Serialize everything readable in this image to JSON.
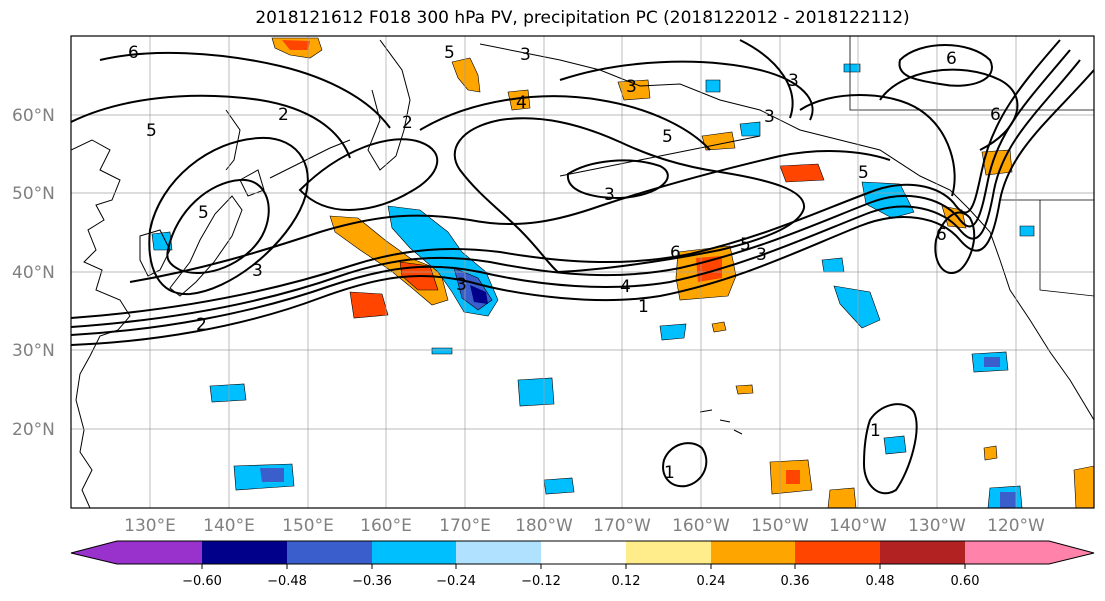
{
  "title": "2018121612 F018 300 hPa PV, precipitation PC (2018122012 - 2018122112)",
  "lat_labels": [
    "60°N",
    "50°N",
    "40°N",
    "30°N",
    "20°N"
  ],
  "lon_labels": [
    "130°E",
    "140°E",
    "150°E",
    "160°E",
    "170°E",
    "180°W",
    "170°W",
    "160°W",
    "150°W",
    "140°W",
    "130°W",
    "120°W"
  ],
  "colorbar": {
    "colors": [
      "#9932cc",
      "#00008b",
      "#3a5fcd",
      "#00bfff",
      "#b0e2ff",
      "#ffffff",
      "#ffec8b",
      "#ffa500",
      "#ff4500",
      "#b22222",
      "#ff82ab"
    ],
    "tick_labels": [
      "−0.60",
      "−0.48",
      "−0.36",
      "−0.24",
      "−0.12",
      "0.12",
      "0.24",
      "0.36",
      "0.48",
      "0.60"
    ]
  },
  "contour_labels": [
    "6",
    "5",
    "2",
    "5",
    "3",
    "4",
    "3",
    "5",
    "3",
    "3",
    "6",
    "6",
    "5",
    "3",
    "5",
    "4",
    "1",
    "5",
    "3",
    "6",
    "6",
    "2",
    "3",
    "3",
    "2",
    "1",
    "1"
  ]
}
